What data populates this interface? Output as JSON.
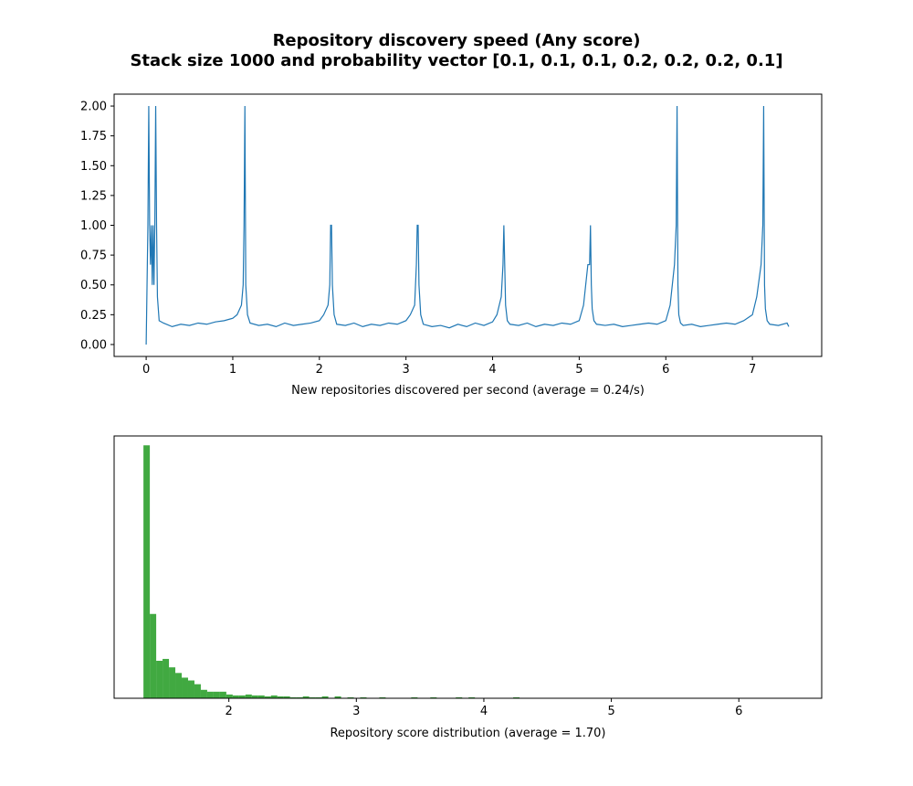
{
  "figure": {
    "title_line1": "Repository discovery speed (Any score)",
    "title_line2": "Stack size 1000 and probability vector [0.1, 0.1, 0.1, 0.2, 0.2, 0.2, 0.1]"
  },
  "colors": {
    "line": "#1f77b4",
    "hist": "#2ca02c",
    "axes": "#000000",
    "background": "#ffffff"
  },
  "chart_data": [
    {
      "type": "line",
      "xlabel": "New repositories discovered per second (average = 0.24/s)",
      "ylabel": "",
      "xlim": [
        -0.37,
        7.8
      ],
      "ylim": [
        -0.1,
        2.1
      ],
      "xticks": [
        0,
        1,
        2,
        3,
        4,
        5,
        6,
        7
      ],
      "yticks": [
        0.0,
        0.25,
        0.5,
        0.75,
        1.0,
        1.25,
        1.5,
        1.75,
        2.0
      ],
      "ytick_labels": [
        "0.00",
        "0.25",
        "0.50",
        "0.75",
        "1.00",
        "1.25",
        "1.50",
        "1.75",
        "2.00"
      ],
      "grid": false,
      "series": [
        {
          "x": [
            0.0,
            0.01,
            0.02,
            0.03,
            0.04,
            0.05,
            0.06,
            0.07,
            0.08,
            0.09,
            0.1,
            0.11,
            0.12,
            0.13,
            0.15,
            0.2,
            0.3,
            0.4,
            0.5,
            0.6,
            0.7,
            0.8,
            0.9,
            1.0,
            1.05,
            1.1,
            1.12,
            1.13,
            1.14,
            1.15,
            1.17,
            1.2,
            1.3,
            1.4,
            1.5,
            1.6,
            1.7,
            1.8,
            1.9,
            2.0,
            2.05,
            2.1,
            2.12,
            2.13,
            2.14,
            2.15,
            2.17,
            2.2,
            2.3,
            2.4,
            2.5,
            2.6,
            2.7,
            2.8,
            2.9,
            3.0,
            3.05,
            3.1,
            3.12,
            3.13,
            3.14,
            3.15,
            3.17,
            3.2,
            3.3,
            3.4,
            3.5,
            3.6,
            3.7,
            3.8,
            3.9,
            4.0,
            4.05,
            4.1,
            4.12,
            4.13,
            4.14,
            4.15,
            4.17,
            4.2,
            4.3,
            4.4,
            4.5,
            4.6,
            4.7,
            4.8,
            4.9,
            5.0,
            5.05,
            5.1,
            5.12,
            5.13,
            5.14,
            5.15,
            5.17,
            5.2,
            5.3,
            5.4,
            5.5,
            5.6,
            5.7,
            5.8,
            5.9,
            6.0,
            6.05,
            6.1,
            6.12,
            6.13,
            6.14,
            6.15,
            6.17,
            6.2,
            6.3,
            6.4,
            6.5,
            6.6,
            6.7,
            6.8,
            6.9,
            7.0,
            7.05,
            7.1,
            7.12,
            7.13,
            7.14,
            7.15,
            7.17,
            7.2,
            7.3,
            7.4,
            7.42
          ],
          "y": [
            0.0,
            0.5,
            1.0,
            2.0,
            1.0,
            0.67,
            1.0,
            0.5,
            1.0,
            0.5,
            1.0,
            2.0,
            1.0,
            0.4,
            0.2,
            0.18,
            0.15,
            0.17,
            0.16,
            0.18,
            0.17,
            0.19,
            0.2,
            0.22,
            0.25,
            0.33,
            0.5,
            1.0,
            2.0,
            0.5,
            0.25,
            0.18,
            0.16,
            0.17,
            0.15,
            0.18,
            0.16,
            0.17,
            0.18,
            0.2,
            0.25,
            0.33,
            0.5,
            1.0,
            1.0,
            0.5,
            0.25,
            0.17,
            0.16,
            0.18,
            0.15,
            0.17,
            0.16,
            0.18,
            0.17,
            0.2,
            0.25,
            0.33,
            0.67,
            1.0,
            1.0,
            0.5,
            0.25,
            0.17,
            0.15,
            0.16,
            0.14,
            0.17,
            0.15,
            0.18,
            0.16,
            0.19,
            0.25,
            0.4,
            0.67,
            1.0,
            0.67,
            0.33,
            0.2,
            0.17,
            0.16,
            0.18,
            0.15,
            0.17,
            0.16,
            0.18,
            0.17,
            0.2,
            0.33,
            0.67,
            0.67,
            1.0,
            0.5,
            0.3,
            0.2,
            0.17,
            0.16,
            0.17,
            0.15,
            0.16,
            0.17,
            0.18,
            0.17,
            0.2,
            0.33,
            0.67,
            1.0,
            2.0,
            0.5,
            0.25,
            0.18,
            0.16,
            0.17,
            0.15,
            0.16,
            0.17,
            0.18,
            0.17,
            0.2,
            0.25,
            0.4,
            0.67,
            1.0,
            2.0,
            0.5,
            0.3,
            0.2,
            0.17,
            0.16,
            0.18,
            0.15
          ]
        }
      ]
    },
    {
      "type": "bar",
      "subtype": "histogram",
      "xlabel": "Repository score distribution (average = 1.70)",
      "ylabel": "",
      "xlim": [
        1.1,
        6.65
      ],
      "ylim": [
        0,
        280
      ],
      "xticks": [
        2,
        3,
        4,
        5,
        6
      ],
      "yticks": [],
      "bin_width": 0.05,
      "bin_start": 1.33,
      "values": [
        270,
        90,
        40,
        42,
        33,
        27,
        22,
        19,
        15,
        9,
        7,
        7,
        7,
        4,
        3,
        3,
        4,
        3,
        3,
        2,
        3,
        2,
        2,
        1,
        1,
        2,
        1,
        1,
        2,
        0,
        2,
        0,
        1,
        0,
        1,
        0,
        0,
        1,
        0,
        0,
        0,
        0,
        1,
        0,
        0,
        1,
        0,
        0,
        0,
        1,
        0,
        1,
        0,
        0,
        0,
        0,
        0,
        0,
        1
      ]
    }
  ]
}
